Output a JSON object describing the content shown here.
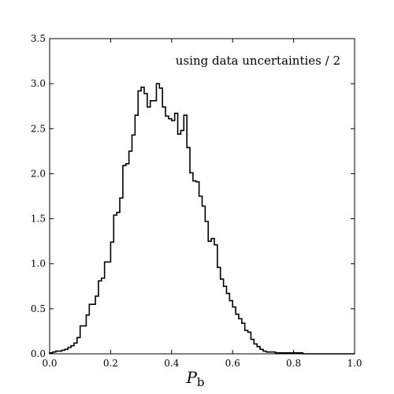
{
  "chart_data": {
    "type": "histogram",
    "style": "step",
    "annotation": "using data uncertainties / 2",
    "xlabel": "P",
    "xlabel_subscript": "b",
    "ylabel": "",
    "xlim": [
      0.0,
      1.0
    ],
    "ylim": [
      0.0,
      3.5
    ],
    "xticks": [
      "0.0",
      "0.2",
      "0.4",
      "0.6",
      "0.8",
      "1.0"
    ],
    "yticks": [
      "0.0",
      "0.5",
      "1.0",
      "1.5",
      "2.0",
      "2.5",
      "3.0",
      "3.5"
    ],
    "grid": false,
    "legend": "none",
    "color": "#000000",
    "bin_width": 0.01,
    "bins_start": 0.0,
    "values": [
      0.01,
      0.02,
      0.03,
      0.03,
      0.04,
      0.05,
      0.07,
      0.09,
      0.12,
      0.18,
      0.31,
      0.31,
      0.43,
      0.55,
      0.55,
      0.64,
      0.81,
      0.84,
      1.02,
      1.02,
      1.24,
      1.54,
      1.57,
      1.73,
      2.09,
      2.11,
      2.25,
      2.43,
      2.65,
      2.92,
      2.96,
      2.89,
      2.74,
      2.81,
      2.81,
      3.0,
      2.95,
      2.74,
      2.64,
      2.61,
      2.59,
      2.67,
      2.44,
      2.48,
      2.65,
      2.29,
      2.01,
      1.92,
      1.91,
      1.75,
      1.64,
      1.47,
      1.25,
      1.28,
      1.21,
      0.96,
      0.83,
      0.75,
      0.67,
      0.59,
      0.52,
      0.44,
      0.39,
      0.34,
      0.26,
      0.24,
      0.16,
      0.11,
      0.08,
      0.05,
      0.03,
      0.02,
      0.02,
      0.02,
      0.01,
      0.01,
      0.01,
      0.01,
      0.01,
      0.01,
      0.01,
      0.01,
      0.01,
      0.0,
      0.0,
      0.0,
      0.0,
      0.0,
      0.0,
      0.0,
      0.0,
      0.0,
      0.0,
      0.0,
      0.0,
      0.0,
      0.0,
      0.0,
      0.0,
      0.0
    ]
  }
}
